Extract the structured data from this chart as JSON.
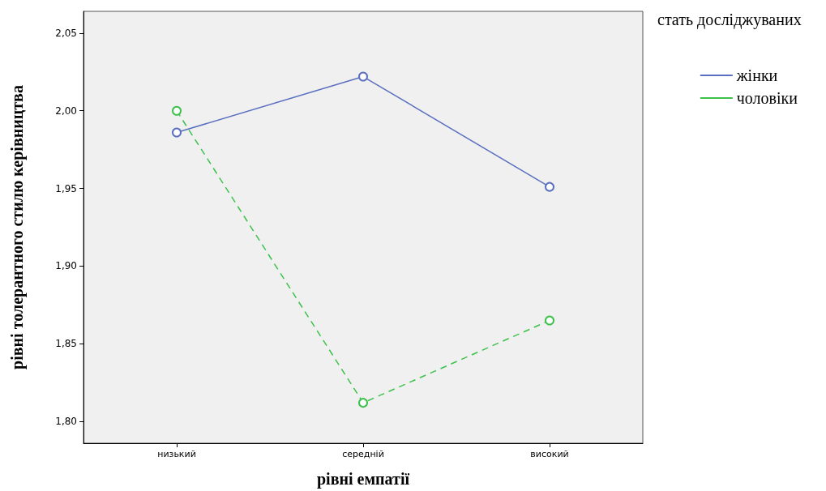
{
  "chart_data": {
    "type": "line",
    "xlabel": "рівні емпатії",
    "ylabel": "рівні толерантного стилю керівництва",
    "legend_title": "стать досліджуваних",
    "categories": [
      "низький",
      "середній",
      "високий"
    ],
    "series": [
      {
        "name": "жінки",
        "color": "#5a6fbf",
        "values": [
          1.986,
          2.022,
          1.951
        ],
        "line_style": "solid"
      },
      {
        "name": "чоловіки",
        "color": "#3cc14a",
        "values": [
          2.0,
          1.812,
          1.865
        ],
        "line_style": "dashed"
      }
    ],
    "ylim": [
      1.786,
      2.064
    ],
    "yticks": [
      {
        "value": 1.8,
        "label": "1,80"
      },
      {
        "value": 1.85,
        "label": "1,85"
      },
      {
        "value": 1.9,
        "label": "1,90"
      },
      {
        "value": 1.95,
        "label": "1,95"
      },
      {
        "value": 2.0,
        "label": "2,00"
      },
      {
        "value": 2.05,
        "label": "2,05"
      }
    ],
    "grid": false,
    "legend": "right",
    "marker": "circle"
  }
}
